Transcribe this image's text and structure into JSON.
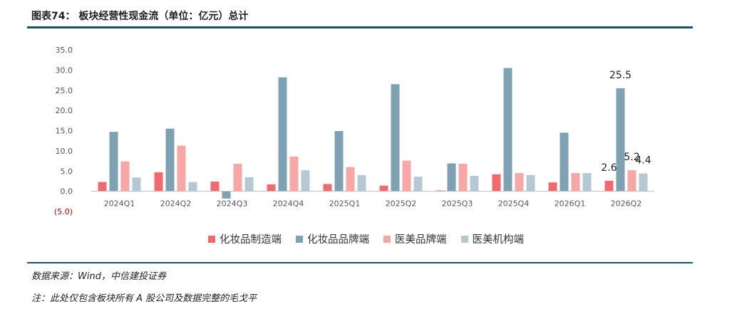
{
  "header": {
    "title": "图表74：  板块经营性现金流（单位：亿元）总计"
  },
  "footer": {
    "source": "数据来源：Wind，中信建投证券",
    "note": "注：此处仅包含板块所有 A 股公司及数据完整的毛戈平"
  },
  "chart_data": {
    "type": "bar",
    "categories": [
      "2024Q1",
      "2024Q2",
      "2024Q3",
      "2024Q4",
      "2025Q1",
      "2025Q2",
      "2025Q3",
      "2025Q4",
      "2026Q1",
      "2026Q2"
    ],
    "series": [
      {
        "name": "化妆品制造端",
        "color": "#ef6b6f",
        "values": [
          2.3,
          4.7,
          2.4,
          1.7,
          1.8,
          1.4,
          0.2,
          4.2,
          2.2,
          2.6
        ]
      },
      {
        "name": "化妆品品牌端",
        "color": "#7fa1b4",
        "values": [
          14.7,
          15.5,
          -1.8,
          28.2,
          14.9,
          26.5,
          6.9,
          30.5,
          14.5,
          25.5
        ]
      },
      {
        "name": "医美品牌端",
        "color": "#f6a7a6",
        "values": [
          7.4,
          11.3,
          6.8,
          8.6,
          6.0,
          7.6,
          6.8,
          4.5,
          4.5,
          5.2
        ]
      },
      {
        "name": "医美机构端",
        "color": "#b5c9d4",
        "values": [
          3.4,
          2.3,
          3.5,
          5.2,
          4.0,
          3.6,
          3.8,
          4.0,
          4.5,
          4.4
        ]
      }
    ],
    "data_labels": [
      {
        "category_index": 9,
        "series_index": 0,
        "text": "2.6"
      },
      {
        "category_index": 9,
        "series_index": 1,
        "text": "25.5"
      },
      {
        "category_index": 9,
        "series_index": 2,
        "text": "5.2"
      },
      {
        "category_index": 9,
        "series_index": 3,
        "text": "4.4"
      }
    ],
    "ylim": [
      -5,
      35
    ],
    "yticks": [
      {
        "value": 35,
        "label": "35.0"
      },
      {
        "value": 30,
        "label": "30.0"
      },
      {
        "value": 25,
        "label": "25.0"
      },
      {
        "value": 20,
        "label": "20.0"
      },
      {
        "value": 15,
        "label": "15.0"
      },
      {
        "value": 10,
        "label": "10.0"
      },
      {
        "value": 5,
        "label": "5.0"
      },
      {
        "value": 0,
        "label": "0.0"
      },
      {
        "value": -5,
        "label": "(5.0)"
      }
    ],
    "negative_tick_color": "#c00000",
    "grid": false,
    "legend_position": "bottom"
  }
}
